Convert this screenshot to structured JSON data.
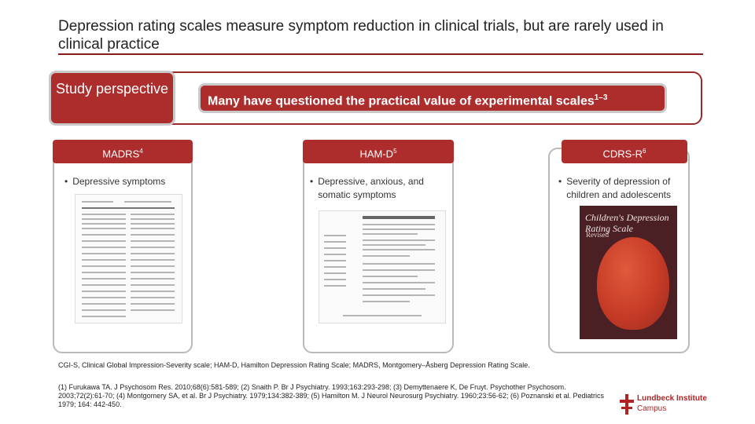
{
  "title": "Depression rating scales measure symptom reduction in clinical trials, but are rarely used in clinical practice",
  "study_perspective": "Study perspective",
  "question": "Many have questioned the practical value of experimental scales",
  "question_sup": "1–3",
  "cards": [
    {
      "name": "MADRS",
      "sup": "4",
      "bullet": "Depressive symptoms"
    },
    {
      "name": "HAM-D",
      "sup": "5",
      "bullet": "Depressive, anxious, and somatic symptoms"
    },
    {
      "name": "CDRS-R",
      "sup": "6",
      "bullet": "Severity of depression of children and adolescents"
    }
  ],
  "cover": {
    "title": "Children's Depression Rating Scale",
    "subtitle": "Revised"
  },
  "abbreviations": "CGI-S, Clinical Global Impression-Severity scale; HAM-D, Hamilton Depression Rating Scale; MADRS, Montgomery–Åsberg Depression Rating Scale.",
  "references": "(1) Furukawa TA. J Psychosom Res. 2010;68(6):581-589; (2) Snaith P. Br J Psychiatry. 1993;163:293-298; (3) Demyttenaere K, De Fruyt. Psychother Psychosom. 2003;72(2):61-70; (4) Montgomery SA, et al. Br J Psychiatry. 1979;134:382-389; (5) Hamilton M. J Neurol Neurosurg Psychiatry. 1960;23:56-62; (6) Poznanski et al. Pediatrics 1979; 164: 442-450.",
  "logo": {
    "name": "Lundbeck Institute",
    "sub": "Campus"
  },
  "colors": {
    "accent": "#ad2c2c",
    "frame": "#9a2a2a",
    "card_border": "#b9b9b9"
  }
}
